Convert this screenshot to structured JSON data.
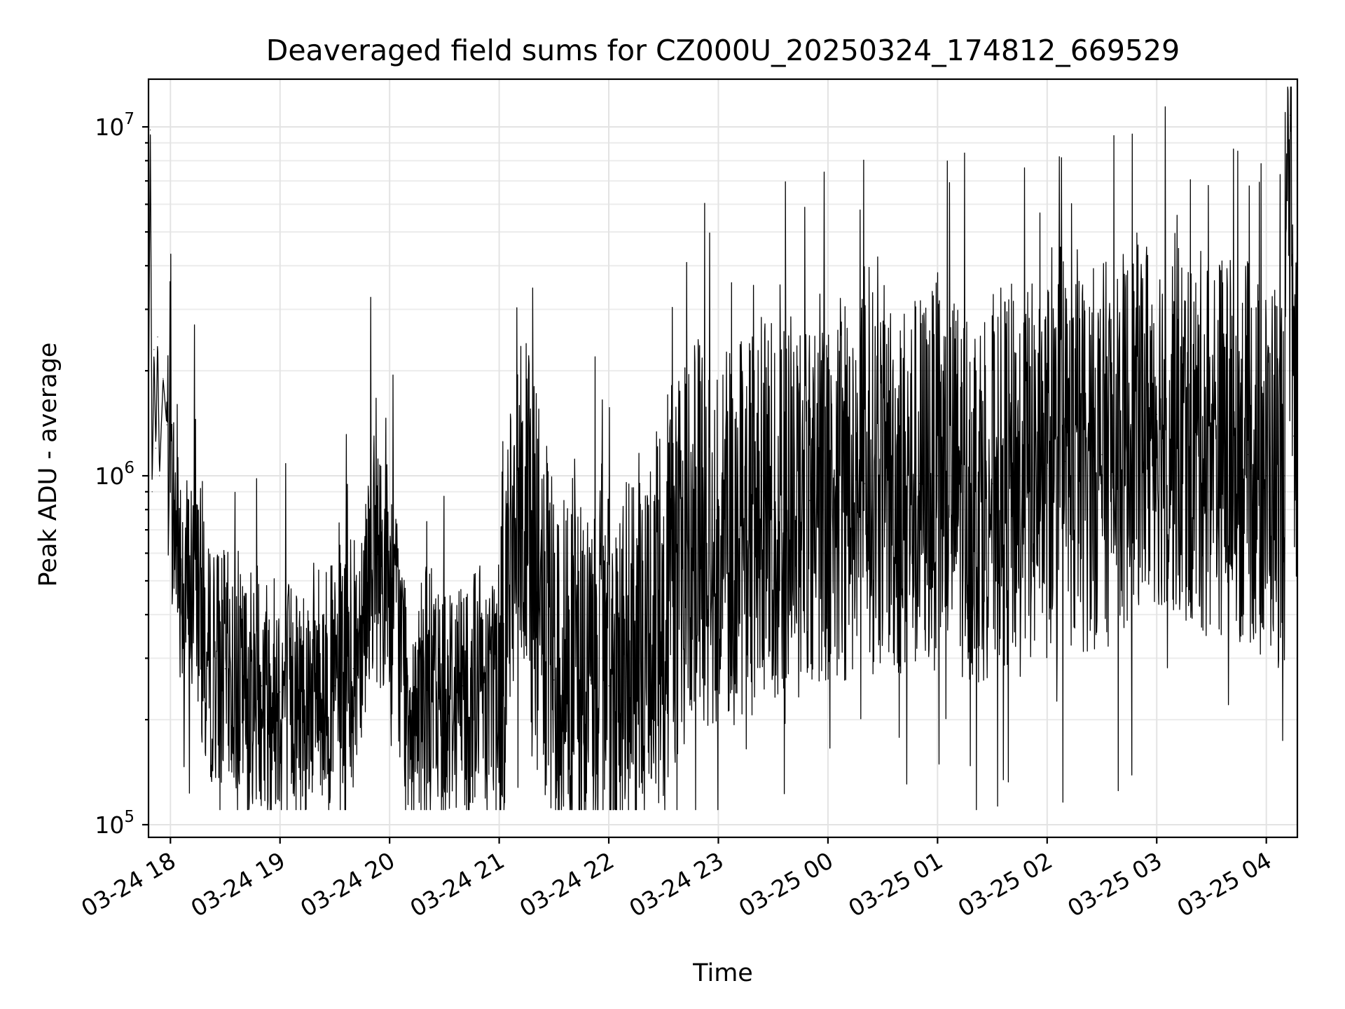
{
  "chart_data": {
    "type": "line",
    "title": "Deaveraged field sums for CZ000U_20250324_174812_669529",
    "xlabel": "Time",
    "ylabel": "Peak ADU - average",
    "yscale": "log",
    "ylim": [
      92000,
      13700000
    ],
    "xlim": [
      "2025-03-24 17:48",
      "2025-03-25 04:17"
    ],
    "grid": true,
    "legend": "none",
    "line_color": "#000000",
    "x_ticks": [
      "03-24 18",
      "03-24 19",
      "03-24 20",
      "03-24 21",
      "03-24 22",
      "03-24 23",
      "03-25 00",
      "03-25 01",
      "03-25 02",
      "03-25 03",
      "03-25 04"
    ],
    "y_ticks": [
      {
        "value": 100000,
        "base": "10",
        "exp": "5"
      },
      {
        "value": 1000000,
        "base": "10",
        "exp": "6"
      },
      {
        "value": 10000000,
        "base": "10",
        "exp": "7"
      }
    ],
    "series": [
      {
        "x": [
          "2025-03-24 17:48",
          "2025-03-24 17:49",
          "2025-03-24 17:50",
          "2025-03-24 17:51",
          "2025-03-24 17:52",
          "2025-03-24 17:53",
          "2025-03-24 17:54",
          "2025-03-24 17:56",
          "2025-03-24 17:58",
          "2025-03-24 18:00",
          "2025-03-24 18:05",
          "2025-03-24 18:10",
          "2025-03-24 18:15",
          "2025-03-24 18:20",
          "2025-03-24 18:25",
          "2025-03-24 18:30",
          "2025-03-24 18:40",
          "2025-03-24 18:50",
          "2025-03-24 19:00",
          "2025-03-24 19:10",
          "2025-03-24 19:20",
          "2025-03-24 19:30",
          "2025-03-24 19:40",
          "2025-03-24 19:50",
          "2025-03-24 20:00",
          "2025-03-24 20:10",
          "2025-03-24 20:20",
          "2025-03-24 20:30",
          "2025-03-24 20:40",
          "2025-03-24 20:50",
          "2025-03-24 21:00",
          "2025-03-24 21:10",
          "2025-03-24 21:20",
          "2025-03-24 21:30",
          "2025-03-24 21:40",
          "2025-03-24 21:50",
          "2025-03-24 22:00",
          "2025-03-24 22:10",
          "2025-03-24 22:20",
          "2025-03-24 22:30",
          "2025-03-24 22:40",
          "2025-03-24 22:50",
          "2025-03-24 23:00",
          "2025-03-24 23:10",
          "2025-03-24 23:20",
          "2025-03-24 23:30",
          "2025-03-24 23:40",
          "2025-03-24 23:50",
          "2025-03-25 00:00",
          "2025-03-25 00:10",
          "2025-03-25 00:20",
          "2025-03-25 00:30",
          "2025-03-25 00:40",
          "2025-03-25 00:50",
          "2025-03-25 01:00",
          "2025-03-25 01:10",
          "2025-03-25 01:20",
          "2025-03-25 01:30",
          "2025-03-25 01:40",
          "2025-03-25 01:50",
          "2025-03-25 02:00",
          "2025-03-25 02:10",
          "2025-03-25 02:20",
          "2025-03-25 02:30",
          "2025-03-25 02:40",
          "2025-03-25 02:50",
          "2025-03-25 03:00",
          "2025-03-25 03:10",
          "2025-03-25 03:20",
          "2025-03-25 03:30",
          "2025-03-25 03:40",
          "2025-03-25 03:50",
          "2025-03-25 04:00",
          "2025-03-25 04:05",
          "2025-03-25 04:10",
          "2025-03-25 04:13",
          "2025-03-25 04:15",
          "2025-03-25 04:17"
        ],
        "values": [
          1500000,
          9800000,
          900000,
          2300000,
          1200000,
          2500000,
          1000000,
          1900000,
          1400000,
          900000,
          600000,
          450000,
          500000,
          280000,
          300000,
          280000,
          240000,
          250000,
          240000,
          230000,
          260000,
          250000,
          280000,
          600000,
          500000,
          240000,
          250000,
          230000,
          250000,
          260000,
          280000,
          900000,
          500000,
          260000,
          280000,
          260000,
          250000,
          280000,
          350000,
          400000,
          600000,
          700000,
          650000,
          700000,
          750000,
          800000,
          800000,
          850000,
          900000,
          900000,
          950000,
          1000000,
          900000,
          950000,
          1000000,
          950000,
          900000,
          950000,
          1000000,
          1000000,
          1050000,
          1100000,
          1100000,
          1150000,
          1200000,
          1400000,
          1500000,
          1400000,
          1200000,
          1300000,
          1200000,
          1150000,
          1000000,
          1100000,
          1000000,
          10800000,
          1300000,
          1800000
        ]
      }
    ]
  }
}
